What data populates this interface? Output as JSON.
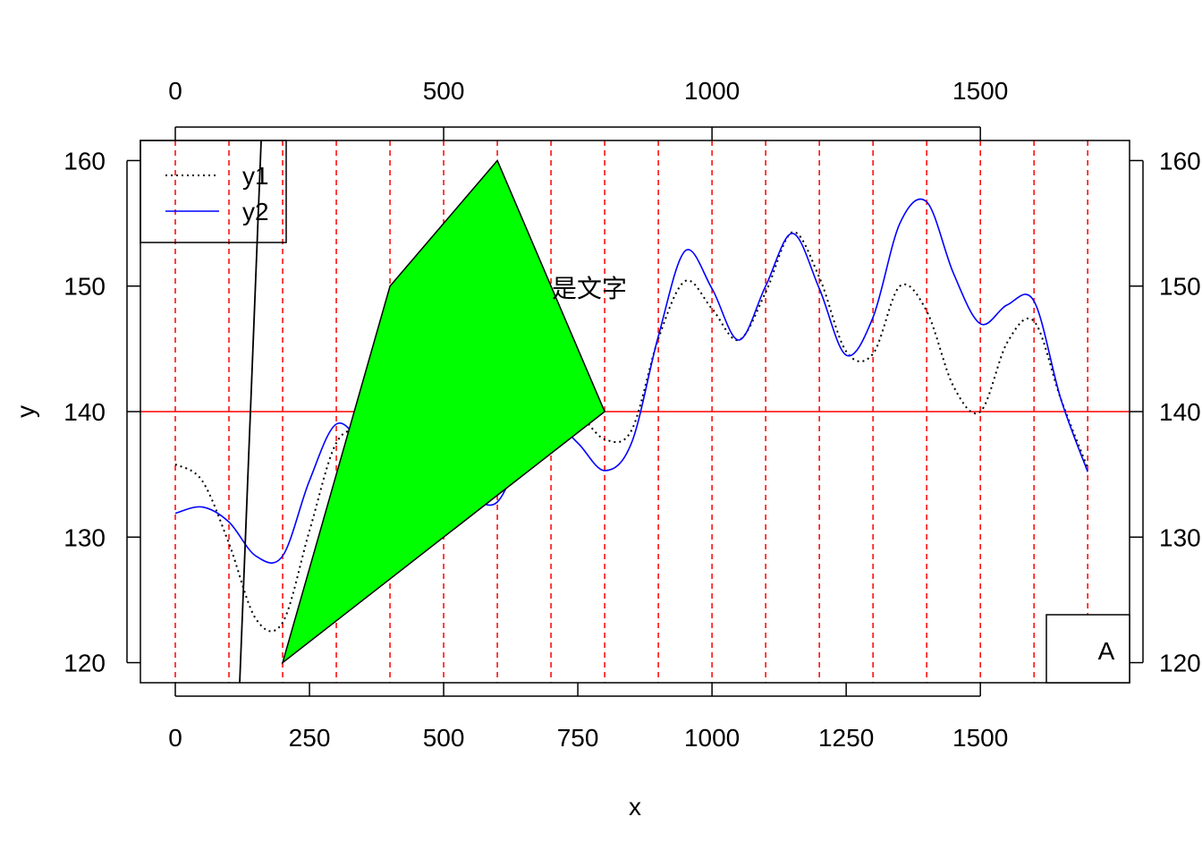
{
  "chart_data": {
    "type": "line",
    "xlabel": "x",
    "ylabel": "y",
    "xlim": [
      -65,
      1778
    ],
    "ylim": [
      118.4,
      161.6
    ],
    "x_ticks_bottom": [
      0,
      250,
      500,
      750,
      1000,
      1250,
      1500
    ],
    "x_ticks_top": [
      0,
      500,
      1000,
      1500
    ],
    "y_ticks_left": [
      120,
      130,
      140,
      150,
      160
    ],
    "y_ticks_right": [
      "120",
      "130",
      "140",
      "150",
      "160"
    ],
    "hline": {
      "y": 140,
      "color": "#ff0000"
    },
    "vlines": {
      "x": [
        0,
        100,
        200,
        300,
        400,
        500,
        600,
        700,
        800,
        900,
        1000,
        1100,
        1200,
        1300,
        1400,
        1500,
        1600,
        1700
      ],
      "color": "#ff0000",
      "style": "dashed"
    },
    "series": [
      {
        "name": "y1",
        "color": "#000000",
        "style": "dotted",
        "x": [
          0,
          50,
          100,
          150,
          200,
          250,
          300,
          350,
          400,
          450,
          500,
          550,
          600,
          650,
          700,
          750,
          800,
          850,
          900,
          950,
          1000,
          1050,
          1100,
          1150,
          1200,
          1250,
          1300,
          1350,
          1400,
          1450,
          1500,
          1550,
          1600,
          1650,
          1700
        ],
        "y": [
          135.8,
          134.5,
          129.5,
          123.5,
          123.2,
          130.5,
          137.5,
          138.4,
          137.0,
          134.5,
          132.8,
          133.2,
          134.3,
          137.5,
          140.0,
          139.8,
          137.8,
          138.5,
          145.8,
          150.4,
          148.2,
          145.7,
          149.5,
          154.3,
          150.7,
          144.8,
          144.6,
          150.0,
          148.0,
          142.0,
          140.0,
          145.5,
          147.2,
          141.0,
          135.5
        ]
      },
      {
        "name": "y2",
        "color": "#0000ff",
        "style": "solid",
        "x": [
          0,
          50,
          100,
          150,
          200,
          250,
          300,
          350,
          400,
          450,
          500,
          550,
          600,
          650,
          700,
          750,
          800,
          850,
          900,
          950,
          1000,
          1050,
          1100,
          1150,
          1200,
          1250,
          1300,
          1350,
          1400,
          1450,
          1500,
          1550,
          1600,
          1650,
          1700
        ],
        "y": [
          131.9,
          132.4,
          131.2,
          128.5,
          128.5,
          134.5,
          139.0,
          137.2,
          134.3,
          132.8,
          132.7,
          133.0,
          132.8,
          137.0,
          139.2,
          137.5,
          135.3,
          137.5,
          146.0,
          152.8,
          149.8,
          145.7,
          150.0,
          154.2,
          149.8,
          144.5,
          147.5,
          155.0,
          156.7,
          151.0,
          147.0,
          148.5,
          148.8,
          141.0,
          135.2
        ]
      }
    ],
    "polygon": {
      "x": [
        200,
        400,
        600,
        800
      ],
      "y": [
        120,
        150,
        160,
        140
      ],
      "fill": "#00ff00",
      "stroke": "#000000"
    },
    "segment": {
      "x": [
        120,
        160
      ],
      "y": [
        118.4,
        161.6
      ],
      "color": "#000000"
    },
    "legend": {
      "position": "top-left",
      "labels": [
        "y1",
        "y2"
      ]
    },
    "annotation_text": "是文字",
    "corner_label": "A",
    "grid": false
  }
}
